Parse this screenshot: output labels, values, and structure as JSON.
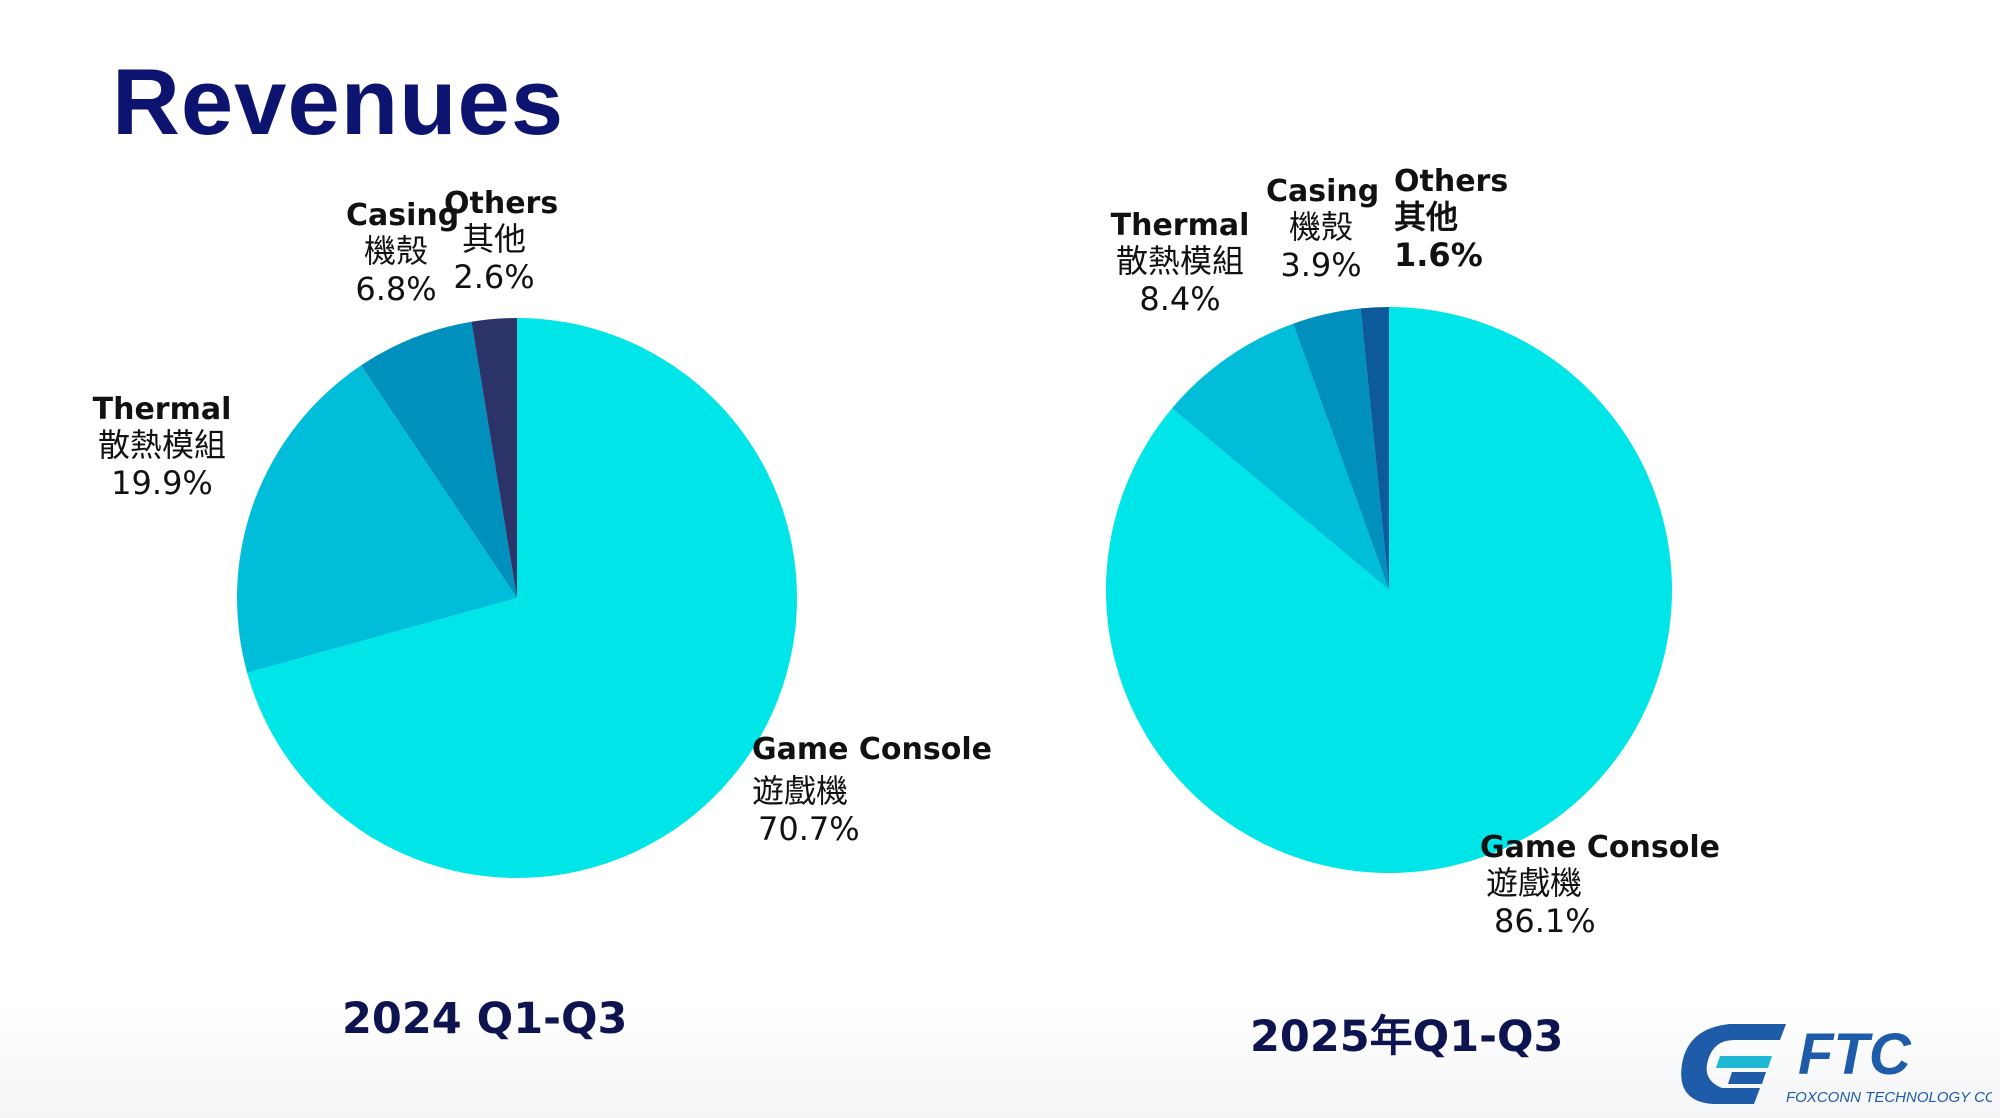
{
  "page": {
    "title": "Revenues"
  },
  "colors": {
    "title": "#0d1470",
    "game_console": "#00e5e8",
    "thermal": "#00bed9",
    "casing": "#0090bd",
    "others_2024": "#2c3369",
    "others_2025": "#0c5a9c"
  },
  "chart_data": [
    {
      "type": "pie",
      "period_label": "2024 Q1-Q3",
      "slices": [
        {
          "name_en": "Game Console",
          "name_zh": "遊戲機",
          "value": 70.7,
          "label": "70.7%"
        },
        {
          "name_en": "Thermal",
          "name_zh": "散熱模組",
          "value": 19.9,
          "label": "19.9%"
        },
        {
          "name_en": "Casing",
          "name_zh": "機殼",
          "value": 6.8,
          "label": "6.8%"
        },
        {
          "name_en": "Others",
          "name_zh": "其他",
          "value": 2.6,
          "label": "2.6%"
        }
      ]
    },
    {
      "type": "pie",
      "period_label": "2025年Q1-Q3",
      "slices": [
        {
          "name_en": "Game Console",
          "name_zh": "遊戲機",
          "value": 86.1,
          "label": "86.1%"
        },
        {
          "name_en": "Thermal",
          "name_zh": "散熱模組",
          "value": 8.4,
          "label": "8.4%"
        },
        {
          "name_en": "Casing",
          "name_zh": "機殼",
          "value": 3.9,
          "label": "3.9%"
        },
        {
          "name_en": "Others",
          "name_zh": "其他",
          "value": 1.6,
          "label": "1.6%"
        }
      ]
    }
  ],
  "logo": {
    "text": "FTC",
    "subtext": "FOXCONN TECHNOLOGY CORP."
  }
}
